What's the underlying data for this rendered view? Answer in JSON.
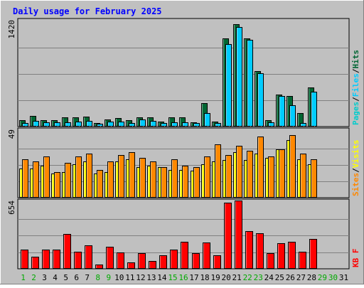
{
  "title": "Daily usage for February 2025",
  "colors": {
    "background": "#c0c0c0",
    "title": "#0000ff",
    "hits": "#006633",
    "files": "#00ccff",
    "pages": "#00cccc",
    "sites": "#ffff00",
    "visits": "#ff8800",
    "kbytes": "#ff0000",
    "weekend_day": "#00aa00",
    "weekday": "#000000"
  },
  "chart_data": [
    {
      "type": "bar",
      "name": "hits-files-pages",
      "ymax_label": "1420",
      "ylim": [
        0,
        1420
      ],
      "legend": [
        "Pages",
        "Files",
        "Hits"
      ],
      "categories": [
        "1",
        "2",
        "3",
        "4",
        "5",
        "6",
        "7",
        "8",
        "9",
        "10",
        "11",
        "12",
        "13",
        "14",
        "15",
        "16",
        "17",
        "18",
        "19",
        "20",
        "21",
        "22",
        "23",
        "24",
        "25",
        "26",
        "27",
        "28",
        "29",
        "30",
        "31"
      ],
      "series": [
        {
          "name": "Hits",
          "values": [
            85,
            140,
            85,
            85,
            125,
            125,
            130,
            50,
            100,
            115,
            85,
            120,
            120,
            65,
            120,
            120,
            60,
            320,
            70,
            1190,
            1380,
            1190,
            750,
            85,
            430,
            410,
            180,
            530,
            0,
            0,
            0
          ]
        },
        {
          "name": "Files",
          "values": [
            50,
            75,
            55,
            55,
            55,
            65,
            75,
            35,
            65,
            65,
            50,
            100,
            80,
            50,
            60,
            60,
            45,
            180,
            45,
            1110,
            1340,
            1170,
            720,
            55,
            410,
            290,
            50,
            470,
            0,
            0,
            0
          ]
        },
        {
          "name": "Pages",
          "values": [
            5,
            5,
            5,
            5,
            5,
            5,
            5,
            5,
            5,
            5,
            5,
            5,
            5,
            5,
            5,
            5,
            5,
            10,
            5,
            10,
            10,
            10,
            10,
            5,
            10,
            10,
            5,
            10,
            0,
            0,
            0
          ]
        }
      ]
    },
    {
      "type": "bar",
      "name": "sites-visits",
      "ymax_label": "49",
      "ylim": [
        0,
        49
      ],
      "legend": [
        "Sites",
        "Visits"
      ],
      "categories": [
        "1",
        "2",
        "3",
        "4",
        "5",
        "6",
        "7",
        "8",
        "9",
        "10",
        "11",
        "12",
        "13",
        "14",
        "15",
        "16",
        "17",
        "18",
        "19",
        "20",
        "21",
        "22",
        "23",
        "24",
        "25",
        "26",
        "27",
        "28",
        "29",
        "30",
        "31"
      ],
      "series": [
        {
          "name": "Sites",
          "values": [
            22,
            22,
            24,
            18,
            19,
            25,
            27,
            18,
            19,
            27,
            29,
            23,
            24,
            23,
            21,
            21,
            20,
            25,
            27,
            28,
            34,
            28,
            33,
            30,
            36,
            43,
            29,
            25,
            0,
            0,
            0
          ]
        },
        {
          "name": "Visits",
          "values": [
            29,
            27,
            31,
            19,
            26,
            31,
            33,
            21,
            27,
            32,
            34,
            30,
            27,
            23,
            29,
            24,
            23,
            31,
            40,
            32,
            39,
            35,
            46,
            31,
            36,
            47,
            33,
            29,
            0,
            0,
            0
          ]
        }
      ]
    },
    {
      "type": "bar",
      "name": "kbytes",
      "ymax_label": "654",
      "ylim": [
        0,
        654
      ],
      "legend": [
        "KB F"
      ],
      "categories": [
        "1",
        "2",
        "3",
        "4",
        "5",
        "6",
        "7",
        "8",
        "9",
        "10",
        "11",
        "12",
        "13",
        "14",
        "15",
        "16",
        "17",
        "18",
        "19",
        "20",
        "21",
        "22",
        "23",
        "24",
        "25",
        "26",
        "27",
        "28",
        "29",
        "30",
        "31"
      ],
      "series": [
        {
          "name": "KB F",
          "values": [
            190,
            120,
            190,
            185,
            340,
            170,
            230,
            40,
            215,
            160,
            65,
            150,
            80,
            130,
            190,
            265,
            150,
            260,
            130,
            650,
            670,
            370,
            350,
            155,
            250,
            265,
            170,
            290,
            0,
            0,
            0
          ]
        }
      ]
    }
  ],
  "x_labels": [
    {
      "label": "1",
      "weekend": true
    },
    {
      "label": "2",
      "weekend": true
    },
    {
      "label": "3",
      "weekend": false
    },
    {
      "label": "4",
      "weekend": false
    },
    {
      "label": "5",
      "weekend": false
    },
    {
      "label": "6",
      "weekend": false
    },
    {
      "label": "7",
      "weekend": false
    },
    {
      "label": "8",
      "weekend": true
    },
    {
      "label": "9",
      "weekend": true
    },
    {
      "label": "10",
      "weekend": false
    },
    {
      "label": "11",
      "weekend": false
    },
    {
      "label": "12",
      "weekend": false
    },
    {
      "label": "13",
      "weekend": false
    },
    {
      "label": "14",
      "weekend": false
    },
    {
      "label": "15",
      "weekend": true
    },
    {
      "label": "16",
      "weekend": true
    },
    {
      "label": "17",
      "weekend": false
    },
    {
      "label": "18",
      "weekend": false
    },
    {
      "label": "19",
      "weekend": false
    },
    {
      "label": "20",
      "weekend": false
    },
    {
      "label": "21",
      "weekend": false
    },
    {
      "label": "22",
      "weekend": true
    },
    {
      "label": "23",
      "weekend": true
    },
    {
      "label": "24",
      "weekend": false
    },
    {
      "label": "25",
      "weekend": false
    },
    {
      "label": "26",
      "weekend": false
    },
    {
      "label": "27",
      "weekend": false
    },
    {
      "label": "28",
      "weekend": false
    },
    {
      "label": "29",
      "weekend": true
    },
    {
      "label": "30",
      "weekend": true
    },
    {
      "label": "31",
      "weekend": false
    }
  ]
}
